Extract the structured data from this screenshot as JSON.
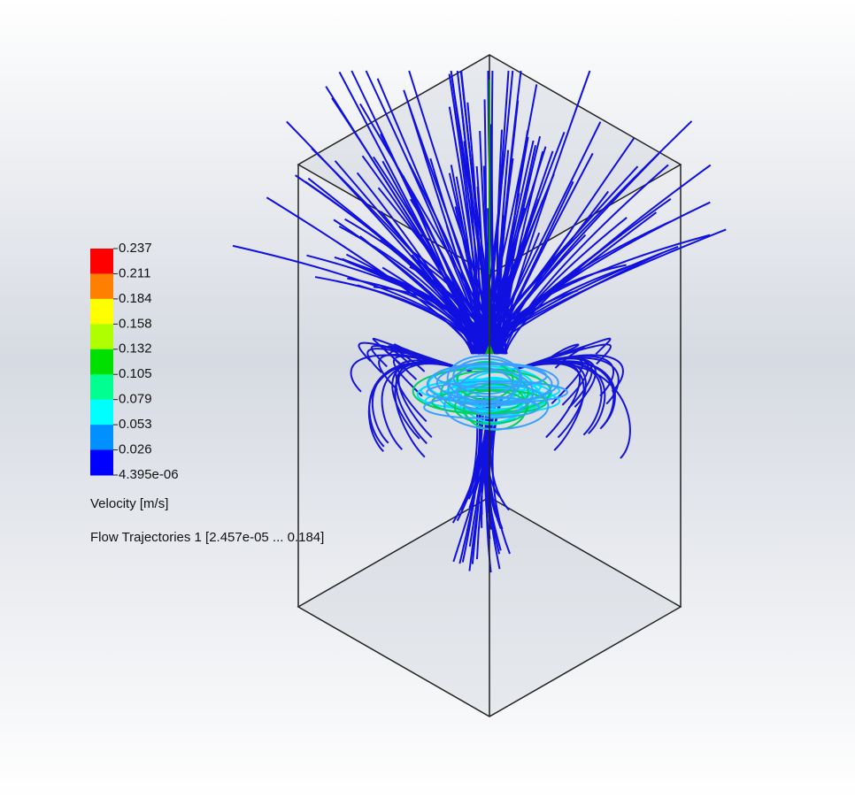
{
  "legend": {
    "labels": [
      "0.237",
      "0.211",
      "0.184",
      "0.158",
      "0.132",
      "0.105",
      "0.079",
      "0.053",
      "0.026",
      "4.395e-06"
    ],
    "colors": [
      "#ff0000",
      "#ff8000",
      "#ffff00",
      "#b0ff00",
      "#00e000",
      "#00ff90",
      "#00ffff",
      "#0090ff",
      "#0000ff"
    ],
    "title": "Velocity [m/s]"
  },
  "trajectory_label": "Flow Trajectories 1 [2.457e-05 ... 0.184]"
}
